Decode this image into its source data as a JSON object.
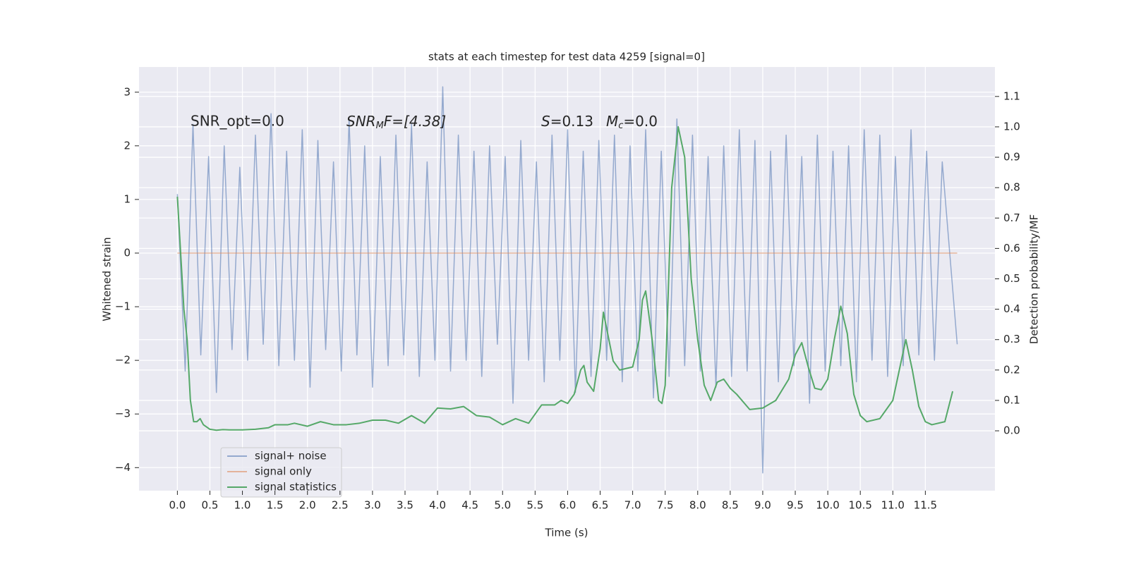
{
  "chart_data": {
    "type": "line",
    "title": "stats at each timestep for test data 4259 [signal=0]",
    "xlabel": "Time (s)",
    "ylabel": "Whitened strain",
    "y2label": "Detection probability/MF",
    "annotations": [
      [
        "SNR_opt=0.0"
      ],
      [
        "SNR",
        "M",
        "F=[4.38]"
      ],
      [
        "S",
        "=0.13"
      ],
      [
        "M",
        "c",
        "=0.0"
      ]
    ],
    "xlim": [
      -0.59,
      12.57
    ],
    "ylim": [
      -4.43,
      3.47
    ],
    "y2lim": [
      -0.197,
      1.197
    ],
    "grid": true,
    "legend": "lower left",
    "xticks": [
      {
        "value": 0,
        "label": "0.0"
      },
      0.5,
      {
        "value": 1,
        "label": "1.0"
      },
      1.5,
      {
        "value": 2,
        "label": "2.0"
      },
      2.5,
      {
        "value": 3,
        "label": "3.0"
      },
      3.5,
      {
        "value": 4,
        "label": "4.0"
      },
      4.5,
      {
        "value": 5,
        "label": "5.0"
      },
      5.5,
      {
        "value": 6,
        "label": "6.0"
      },
      6.5,
      {
        "value": 7,
        "label": "7.0"
      },
      7.5,
      {
        "value": 8,
        "label": "8.0"
      },
      8.5,
      {
        "value": 9,
        "label": "9.0"
      },
      9.5,
      {
        "value": 10,
        "label": "10.0"
      },
      10.5,
      {
        "value": 11,
        "label": "11.0"
      },
      11.5
    ],
    "yticks": [
      {
        "value": -4,
        "label": "−4"
      },
      {
        "value": -3,
        "label": "−3"
      },
      {
        "value": -2,
        "label": "−2"
      },
      {
        "value": -1,
        "label": "−1"
      },
      0,
      1,
      2,
      3
    ],
    "y2ticks": [
      {
        "value": 0,
        "label": "0.0"
      },
      0.1,
      0.2,
      0.3,
      0.4,
      0.5,
      0.6,
      0.7,
      0.8,
      0.9,
      {
        "value": 1,
        "label": "1.0"
      },
      1.1
    ],
    "series": [
      {
        "name": "signal+ noise",
        "color": "#4c72b0",
        "axis": "y",
        "x": [
          0,
          0.12,
          0.24,
          0.36,
          0.48,
          0.6,
          0.72,
          0.84,
          0.96,
          1.08,
          1.2,
          1.32,
          1.44,
          1.56,
          1.68,
          1.8,
          1.92,
          2.04,
          2.16,
          2.28,
          2.4,
          2.52,
          2.64,
          2.76,
          2.88,
          3.0,
          3.12,
          3.24,
          3.36,
          3.48,
          3.6,
          3.72,
          3.84,
          3.96,
          4.08,
          4.2,
          4.32,
          4.44,
          4.56,
          4.68,
          4.8,
          4.92,
          5.04,
          5.16,
          5.28,
          5.4,
          5.52,
          5.64,
          5.76,
          5.88,
          6.0,
          6.12,
          6.24,
          6.36,
          6.48,
          6.6,
          6.72,
          6.84,
          6.96,
          7.08,
          7.2,
          7.32,
          7.44,
          7.56,
          7.68,
          7.8,
          7.92,
          8.04,
          8.16,
          8.28,
          8.4,
          8.52,
          8.64,
          8.76,
          8.88,
          9.0,
          9.12,
          9.24,
          9.36,
          9.48,
          9.6,
          9.72,
          9.84,
          9.96,
          10.08,
          10.2,
          10.32,
          10.44,
          10.56,
          10.68,
          10.8,
          10.92,
          11.04,
          11.16,
          11.28,
          11.4,
          11.52,
          11.64,
          11.76,
          11.99
        ],
        "values": [
          1.1,
          -2.2,
          2.4,
          -1.9,
          1.8,
          -2.6,
          2.0,
          -1.8,
          1.6,
          -2.0,
          2.2,
          -1.7,
          2.6,
          -2.1,
          1.9,
          -2.0,
          2.3,
          -2.5,
          2.1,
          -1.8,
          1.7,
          -2.2,
          2.5,
          -1.9,
          2.0,
          -2.5,
          1.8,
          -2.1,
          2.2,
          -1.9,
          2.4,
          -2.3,
          1.7,
          -2.0,
          3.1,
          -2.2,
          2.2,
          -2.0,
          1.9,
          -2.3,
          2.0,
          -1.7,
          1.8,
          -2.8,
          2.1,
          -2.0,
          1.7,
          -2.4,
          2.2,
          -2.0,
          2.3,
          -2.6,
          1.9,
          -2.3,
          2.1,
          -2.0,
          2.2,
          -2.4,
          2.0,
          -2.2,
          2.3,
          -2.7,
          1.9,
          -2.3,
          2.5,
          -2.1,
          2.2,
          -2.2,
          1.8,
          -2.5,
          2.0,
          -2.3,
          2.3,
          -2.2,
          2.1,
          -4.1,
          1.9,
          -2.4,
          2.2,
          -2.1,
          1.8,
          -2.8,
          2.2,
          -2.2,
          1.9,
          -2.1,
          2.0,
          -2.4,
          2.3,
          -2.0,
          2.2,
          -2.3,
          1.8,
          -2.1,
          2.3,
          -1.9,
          1.9,
          -2.0,
          1.7,
          -1.7
        ]
      },
      {
        "name": "signal only",
        "color": "#dd8452",
        "axis": "y",
        "x": [
          0,
          11.99
        ],
        "values": [
          0,
          0
        ]
      },
      {
        "name": "signal statistics",
        "color": "#55a868",
        "axis": "y2",
        "x": [
          0,
          0.1,
          0.15,
          0.2,
          0.25,
          0.3,
          0.35,
          0.4,
          0.5,
          0.6,
          0.7,
          0.8,
          1.0,
          1.2,
          1.4,
          1.5,
          1.7,
          1.8,
          2.0,
          2.2,
          2.4,
          2.6,
          2.8,
          3.0,
          3.2,
          3.4,
          3.6,
          3.8,
          4.0,
          4.2,
          4.4,
          4.6,
          4.8,
          5.0,
          5.2,
          5.4,
          5.6,
          5.8,
          5.9,
          6.0,
          6.1,
          6.2,
          6.25,
          6.3,
          6.4,
          6.5,
          6.55,
          6.7,
          6.8,
          7.0,
          7.1,
          7.15,
          7.2,
          7.3,
          7.4,
          7.45,
          7.5,
          7.6,
          7.7,
          7.8,
          7.9,
          8.0,
          8.1,
          8.2,
          8.3,
          8.4,
          8.5,
          8.6,
          8.8,
          9.0,
          9.2,
          9.4,
          9.5,
          9.6,
          9.7,
          9.8,
          9.9,
          10.0,
          10.1,
          10.2,
          10.3,
          10.4,
          10.5,
          10.6,
          10.8,
          10.9,
          11.0,
          11.1,
          11.2,
          11.3,
          11.4,
          11.5,
          11.6,
          11.8,
          11.92
        ],
        "values": [
          0.77,
          0.4,
          0.3,
          0.1,
          0.03,
          0.03,
          0.04,
          0.02,
          0.005,
          0.002,
          0.004,
          0.003,
          0.003,
          0.005,
          0.01,
          0.02,
          0.02,
          0.025,
          0.015,
          0.03,
          0.02,
          0.02,
          0.025,
          0.035,
          0.035,
          0.025,
          0.05,
          0.025,
          0.075,
          0.072,
          0.08,
          0.05,
          0.045,
          0.02,
          0.04,
          0.025,
          0.085,
          0.085,
          0.1,
          0.09,
          0.12,
          0.2,
          0.215,
          0.16,
          0.13,
          0.27,
          0.39,
          0.23,
          0.2,
          0.21,
          0.3,
          0.43,
          0.46,
          0.3,
          0.1,
          0.09,
          0.15,
          0.8,
          1.0,
          0.9,
          0.5,
          0.3,
          0.15,
          0.1,
          0.16,
          0.17,
          0.14,
          0.12,
          0.07,
          0.075,
          0.1,
          0.17,
          0.25,
          0.29,
          0.21,
          0.14,
          0.135,
          0.17,
          0.3,
          0.41,
          0.32,
          0.12,
          0.05,
          0.03,
          0.04,
          0.07,
          0.1,
          0.2,
          0.3,
          0.2,
          0.08,
          0.03,
          0.02,
          0.03,
          0.13
        ]
      }
    ]
  }
}
